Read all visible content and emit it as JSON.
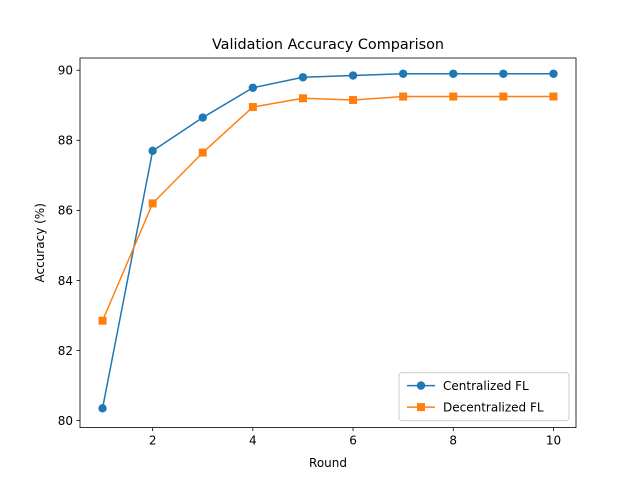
{
  "chart_data": {
    "type": "line",
    "title": "Validation Accuracy Comparison",
    "xlabel": "Round",
    "ylabel": "Accuracy (%)",
    "xlim": [
      0.55,
      10.45
    ],
    "ylim": [
      79.8,
      90.35
    ],
    "xticks": [
      2,
      4,
      6,
      8,
      10
    ],
    "yticks": [
      80,
      82,
      84,
      86,
      88,
      90
    ],
    "grid": false,
    "legend_position": "lower right",
    "x": [
      1,
      2,
      3,
      4,
      5,
      6,
      7,
      8,
      9,
      10
    ],
    "series": [
      {
        "name": "Centralized FL",
        "color": "#1f77b4",
        "marker": "circle",
        "values": [
          80.35,
          87.7,
          88.65,
          89.5,
          89.8,
          89.85,
          89.9,
          89.9,
          89.9,
          89.9
        ]
      },
      {
        "name": "Decentralized FL",
        "color": "#ff7f0e",
        "marker": "square",
        "values": [
          82.85,
          86.2,
          87.65,
          88.95,
          89.2,
          89.15,
          89.25,
          89.25,
          89.25,
          89.25
        ]
      }
    ]
  }
}
